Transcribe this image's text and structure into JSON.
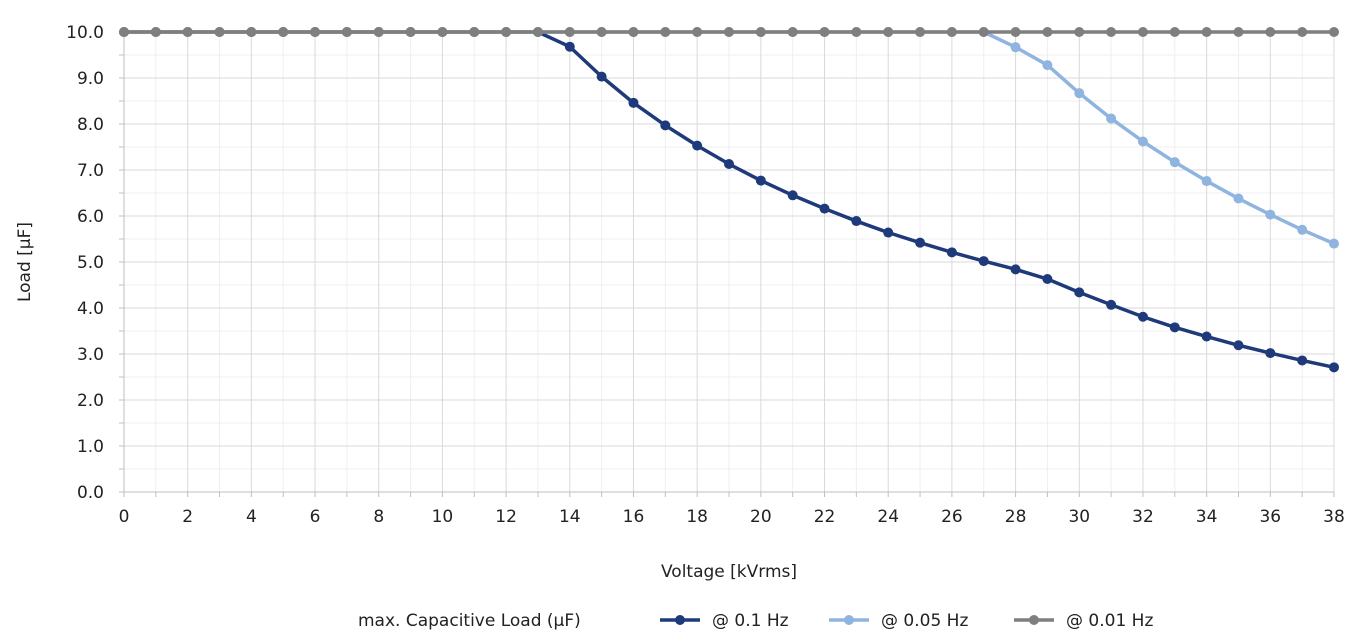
{
  "chart_data": {
    "type": "line",
    "xlabel": "Voltage [kVrms]",
    "ylabel": "Load [µF]",
    "xlim": [
      0,
      38
    ],
    "ylim": [
      0,
      10
    ],
    "x_ticks": [
      "0",
      "2",
      "4",
      "6",
      "8",
      "10",
      "12",
      "14",
      "16",
      "18",
      "20",
      "22",
      "24",
      "26",
      "28",
      "30",
      "32",
      "34",
      "36",
      "38"
    ],
    "y_ticks": [
      "0.0",
      "1.0",
      "2.0",
      "3.0",
      "4.0",
      "5.0",
      "6.0",
      "7.0",
      "8.0",
      "9.0",
      "10.0"
    ],
    "grid": true,
    "legend_position": "bottom",
    "legend_title": "max. Capacitive Load (µF)",
    "x": [
      0,
      1,
      2,
      3,
      4,
      5,
      6,
      7,
      8,
      9,
      10,
      11,
      12,
      13,
      14,
      15,
      16,
      17,
      18,
      19,
      20,
      21,
      22,
      23,
      24,
      25,
      26,
      27,
      28,
      29,
      30,
      31,
      32,
      33,
      34,
      35,
      36,
      37,
      38
    ],
    "series": [
      {
        "name": "@ 0.1 Hz",
        "color": "#1f3a7a",
        "values": [
          10,
          10,
          10,
          10,
          10,
          10,
          10,
          10,
          10,
          10,
          10,
          10,
          10,
          10,
          9.68,
          9.03,
          8.46,
          7.97,
          7.53,
          7.13,
          6.77,
          6.45,
          6.16,
          5.89,
          5.64,
          5.42,
          5.21,
          5.02,
          4.84,
          4.63,
          4.34,
          4.07,
          3.81,
          3.58,
          3.38,
          3.19,
          3.02,
          2.86,
          2.71
        ]
      },
      {
        "name": "@ 0.05 Hz",
        "color": "#8fb4df",
        "values": [
          10,
          10,
          10,
          10,
          10,
          10,
          10,
          10,
          10,
          10,
          10,
          10,
          10,
          10,
          10,
          10,
          10,
          10,
          10,
          10,
          10,
          10,
          10,
          10,
          10,
          10,
          10,
          10,
          9.67,
          9.28,
          8.67,
          8.12,
          7.62,
          7.17,
          6.76,
          6.38,
          6.03,
          5.7,
          5.4
        ]
      },
      {
        "name": "@ 0.01 Hz",
        "color": "#7f7f7f",
        "values": [
          10,
          10,
          10,
          10,
          10,
          10,
          10,
          10,
          10,
          10,
          10,
          10,
          10,
          10,
          10,
          10,
          10,
          10,
          10,
          10,
          10,
          10,
          10,
          10,
          10,
          10,
          10,
          10,
          10,
          10,
          10,
          10,
          10,
          10,
          10,
          10,
          10,
          10,
          10
        ]
      }
    ]
  }
}
